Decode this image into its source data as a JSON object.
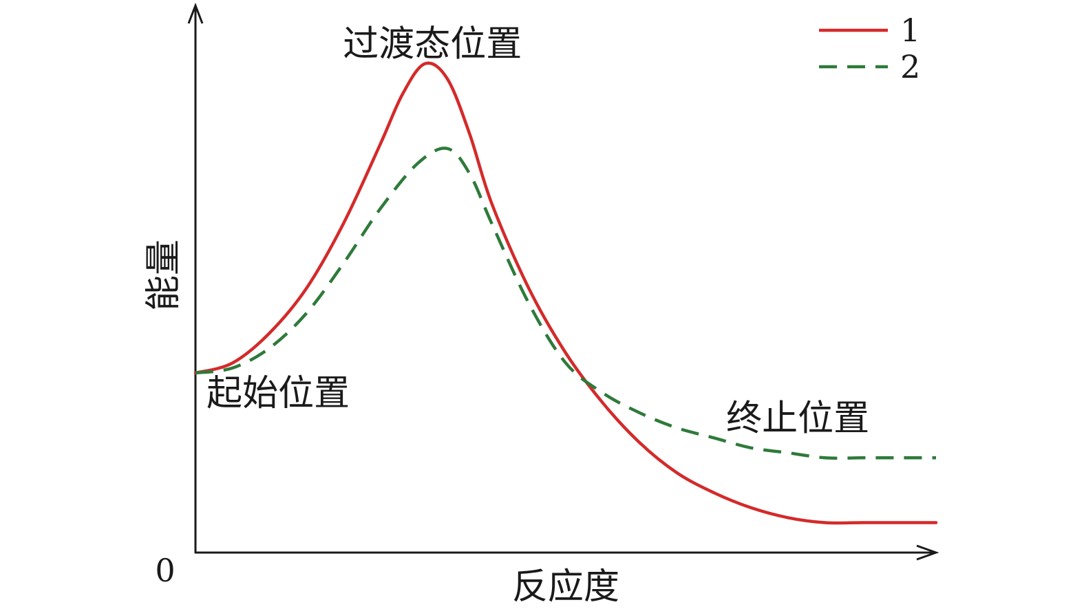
{
  "chart_data": {
    "type": "line",
    "title": "",
    "xlabel": "反应度",
    "ylabel": "能量",
    "origin_label": "0",
    "xlim": [
      0,
      10
    ],
    "ylim": [
      0,
      10
    ],
    "grid": false,
    "legend_position": "top-right",
    "series": [
      {
        "name": "1",
        "color": "#d42a2a",
        "style": "solid",
        "x": [
          0,
          0.5,
          1,
          1.5,
          2,
          2.5,
          2.8,
          3.1,
          3.4,
          3.7,
          4,
          4.5,
          5,
          5.5,
          6,
          6.5,
          7,
          7.5,
          8,
          8.5,
          9,
          9.5,
          10
        ],
        "y": [
          3.6,
          3.8,
          4.4,
          5.3,
          6.6,
          8.2,
          9.2,
          9.8,
          9.5,
          8.4,
          7.0,
          5.3,
          4.0,
          3.0,
          2.2,
          1.6,
          1.2,
          0.9,
          0.7,
          0.6,
          0.6,
          0.6,
          0.6
        ]
      },
      {
        "name": "2",
        "color": "#2e7a3a",
        "style": "dashed",
        "x": [
          0,
          0.5,
          1,
          1.5,
          2,
          2.5,
          3,
          3.4,
          3.7,
          4,
          4.5,
          5,
          5.5,
          6,
          6.5,
          7,
          7.5,
          8,
          8.5,
          9,
          9.5,
          10
        ],
        "y": [
          3.6,
          3.7,
          4.1,
          4.8,
          5.8,
          6.9,
          7.8,
          8.1,
          7.6,
          6.6,
          5.0,
          3.8,
          3.2,
          2.8,
          2.5,
          2.3,
          2.1,
          2.0,
          1.9,
          1.9,
          1.9,
          1.9
        ]
      }
    ],
    "annotations": [
      {
        "text": "过渡态位置",
        "x": 3.2,
        "y": 10.2,
        "anchor": "middle"
      },
      {
        "text": "起始位置",
        "x": 0.15,
        "y": 3.2,
        "anchor": "start"
      },
      {
        "text": "终止位置",
        "x": 9.1,
        "y": 2.7,
        "anchor": "end"
      }
    ]
  }
}
